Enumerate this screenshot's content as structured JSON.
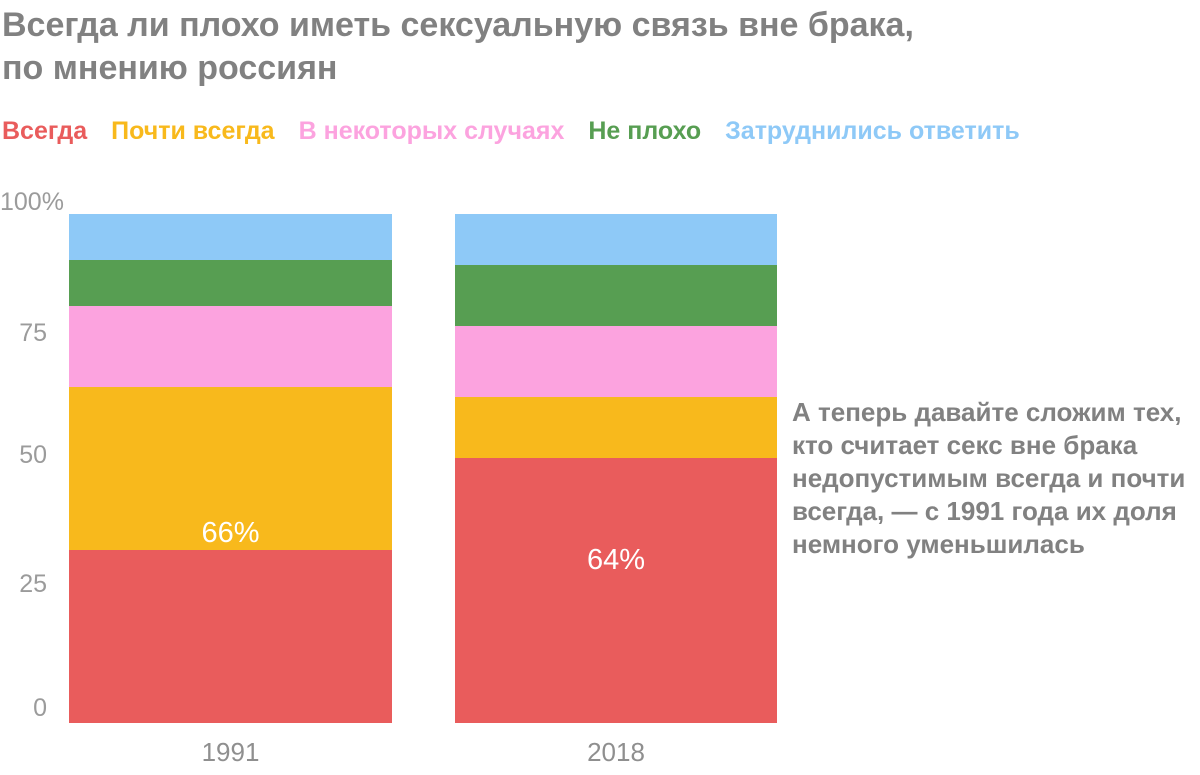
{
  "title": {
    "line1": "Всегда ли плохо иметь сексуальную связь вне брака,",
    "line2": "по мнению россиян"
  },
  "chart_data": {
    "type": "bar",
    "subtype": "stacked-percent",
    "title": "Всегда ли плохо иметь сексуальную связь вне брака, по мнению россиян",
    "categories": [
      "1991",
      "2018"
    ],
    "series": [
      {
        "name": "Всегда",
        "color": "#E95C5C",
        "values": [
          34,
          52
        ]
      },
      {
        "name": "Почти всегда",
        "color": "#F8B91C",
        "values": [
          32,
          12
        ]
      },
      {
        "name": "В некоторых случаях",
        "color": "#FCA3DF",
        "values": [
          16,
          14
        ]
      },
      {
        "name": "Не плохо",
        "color": "#579E52",
        "values": [
          9,
          12
        ]
      },
      {
        "name": "Затруднились ответить",
        "color": "#8EC9F7",
        "values": [
          9,
          10
        ]
      }
    ],
    "bar_labels": [
      "66%",
      "64%"
    ],
    "bar_label_note": "сумма долей «Всегда» и «Почти всегда»",
    "y_ticks": [
      "100%",
      "75",
      "50",
      "25",
      "0"
    ],
    "ylim": [
      0,
      100
    ],
    "grid": false,
    "legend_position": "top",
    "annotation": "А теперь давайте сложим тех, кто считает секс вне брака недопустимым всегда и почти всегда, — с 1991 года их доля немного уменьшилась"
  },
  "colors": {
    "background": "#FFFFFF",
    "title_text": "#818181",
    "axis_text": "#9B9B9B",
    "bar_value_text": "#FFFFFF"
  }
}
